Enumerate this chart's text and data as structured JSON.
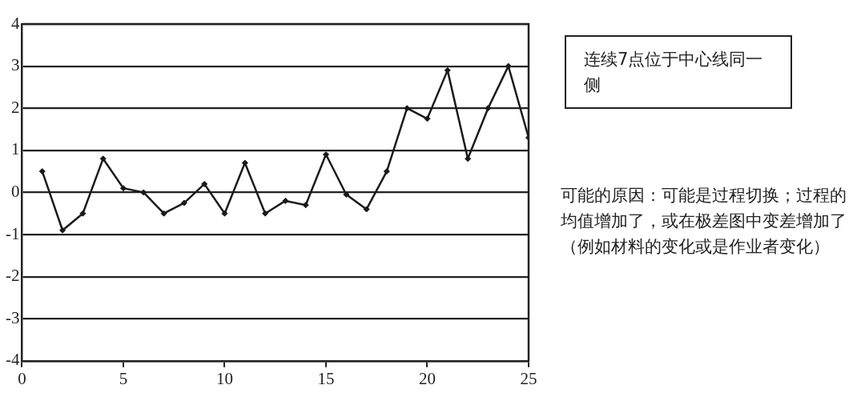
{
  "chart_data": {
    "type": "line",
    "x": [
      1,
      2,
      3,
      4,
      5,
      6,
      7,
      8,
      9,
      10,
      11,
      12,
      13,
      14,
      15,
      16,
      17,
      18,
      19,
      20,
      21,
      22,
      23,
      24,
      25
    ],
    "series": [
      {
        "color": "#1a1a1a",
        "values": [
          0.5,
          -0.9,
          -0.5,
          0.8,
          0.1,
          0,
          -0.5,
          -0.25,
          0.2,
          -0.5,
          0.7,
          -0.5,
          -0.2,
          -0.3,
          0.9,
          -0.05,
          -0.4,
          0.5,
          2.0,
          1.75,
          2.9,
          0.8,
          2.0,
          3.0,
          1.3
        ]
      }
    ],
    "xlim": [
      0,
      25
    ],
    "xticks": [
      0,
      5,
      10,
      15,
      20,
      25
    ],
    "ylim": [
      -4,
      4
    ],
    "yticks": [
      -4,
      -3,
      -2,
      -1,
      0,
      1,
      2,
      3,
      4
    ],
    "grid": "y",
    "legend": false,
    "marker": "diamond",
    "line_style": "solid",
    "annotations": [
      "连续7点位于中心线同一侧",
      "可能的原因：可能是过程切换；过程的均值增加了，或在极差图中变差增加了（例如材料的变化或是作业者变化）"
    ]
  }
}
